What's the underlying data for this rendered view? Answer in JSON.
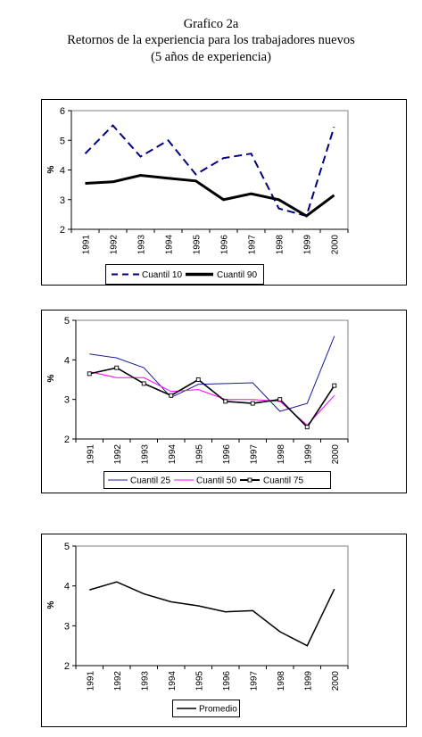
{
  "title_line1": "Grafico 2a",
  "title_line2": "Retornos de la experiencia para los trabajadores nuevos",
  "title_line3": "(5 años de experiencia)",
  "chart_data": [
    {
      "type": "line",
      "ylabel": "%",
      "ylim": [
        2,
        6
      ],
      "yticks": [
        "2",
        "3",
        "4",
        "5",
        "6"
      ],
      "categories": [
        "1991",
        "1992",
        "1993",
        "1994",
        "1995",
        "1996",
        "1997",
        "1998",
        "1999",
        "2000"
      ],
      "series": [
        {
          "name": "Cuantil 10",
          "color": "#000080",
          "style": "dashed",
          "values": [
            4.55,
            5.5,
            4.45,
            5.0,
            3.85,
            4.4,
            4.55,
            2.7,
            2.45,
            5.45
          ]
        },
        {
          "name": "Cuantil 90",
          "color": "#000000",
          "style": "thick",
          "values": [
            3.55,
            3.6,
            3.82,
            3.72,
            3.63,
            3.0,
            3.2,
            3.0,
            2.45,
            3.15
          ]
        }
      ],
      "legend": "bottom"
    },
    {
      "type": "line",
      "ylabel": "%",
      "ylim": [
        2,
        5
      ],
      "yticks": [
        "2",
        "3",
        "4",
        "5"
      ],
      "categories": [
        "1991",
        "1992",
        "1993",
        "1994",
        "1995",
        "1996",
        "1997",
        "1998",
        "1999",
        "2000"
      ],
      "series": [
        {
          "name": "Cuantil 25",
          "color": "#1a1a9c",
          "style": "thin",
          "values": [
            4.15,
            4.05,
            3.8,
            3.05,
            3.38,
            3.4,
            3.42,
            2.7,
            2.9,
            4.6
          ]
        },
        {
          "name": "Cuantil 50",
          "color": "#ff00ff",
          "style": "thin",
          "values": [
            3.7,
            3.55,
            3.55,
            3.2,
            3.25,
            3.0,
            3.0,
            2.95,
            2.35,
            3.1
          ]
        },
        {
          "name": "Cuantil 75",
          "color": "#000000",
          "style": "marker",
          "values": [
            3.65,
            3.8,
            3.4,
            3.1,
            3.5,
            2.95,
            2.9,
            3.0,
            2.3,
            3.35
          ]
        }
      ],
      "legend": "bottom"
    },
    {
      "type": "line",
      "ylabel": "%",
      "ylim": [
        2,
        5
      ],
      "yticks": [
        "2",
        "3",
        "4",
        "5"
      ],
      "categories": [
        "1991",
        "1992",
        "1993",
        "1994",
        "1995",
        "1996",
        "1997",
        "1998",
        "1999",
        "2000"
      ],
      "series": [
        {
          "name": "Promedio",
          "color": "#000000",
          "style": "normal",
          "values": [
            3.9,
            4.1,
            3.8,
            3.6,
            3.5,
            3.35,
            3.38,
            2.85,
            2.5,
            3.92
          ]
        }
      ],
      "legend": "bottom"
    }
  ]
}
